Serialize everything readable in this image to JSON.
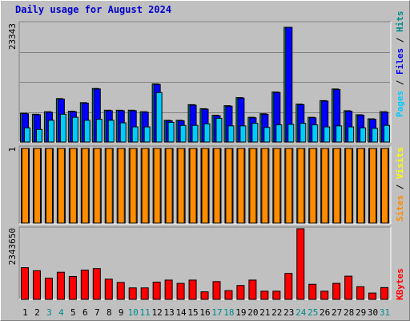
{
  "title": "Daily usage for August 2024",
  "colors": {
    "hits": "#008b8b",
    "files": "#0000ff",
    "pages": "#00ccff",
    "visits": "#ffff00",
    "sites": "#ff8c00",
    "kbytes": "#ff0000",
    "weekend_day": "#008b8b"
  },
  "chart_data": [
    {
      "type": "bar",
      "name": "hits-files-pages",
      "categories": [
        "1",
        "2",
        "3",
        "4",
        "5",
        "6",
        "7",
        "8",
        "9",
        "10",
        "11",
        "12",
        "13",
        "14",
        "15",
        "16",
        "17",
        "18",
        "19",
        "20",
        "21",
        "22",
        "23",
        "24",
        "25",
        "26",
        "27",
        "28",
        "29",
        "30",
        "31"
      ],
      "ymax_label": "23343",
      "ylim": [
        0,
        23343
      ],
      "series": [
        {
          "name": "Hits",
          "values": [
            5700,
            5500,
            6000,
            8600,
            6100,
            7800,
            10600,
            6300,
            6300,
            6300,
            6000,
            11500,
            4300,
            4300,
            7400,
            6600,
            5300,
            7200,
            8800,
            4900,
            5600,
            9900,
            22700,
            7500,
            4900,
            8200,
            10500,
            6200,
            5400,
            4600,
            6000
          ]
        },
        {
          "name": "Files",
          "values": [
            5600,
            5400,
            5900,
            8500,
            6000,
            7700,
            10500,
            6200,
            6200,
            6200,
            5900,
            11400,
            4200,
            4200,
            7300,
            6500,
            5200,
            7100,
            8700,
            4800,
            5500,
            9800,
            22700,
            7400,
            4800,
            8100,
            10400,
            6100,
            5300,
            4500,
            5900
          ]
        },
        {
          "name": "Pages",
          "values": [
            2800,
            2500,
            4300,
            5500,
            4900,
            4300,
            4500,
            4300,
            3800,
            3000,
            3000,
            9800,
            3900,
            3300,
            3300,
            3600,
            4700,
            3200,
            3200,
            3700,
            2900,
            3400,
            3500,
            3700,
            3400,
            3000,
            3200,
            3000,
            2800,
            2700,
            3300
          ]
        }
      ]
    },
    {
      "type": "bar",
      "name": "sites-visits",
      "categories": [
        "1",
        "2",
        "3",
        "4",
        "5",
        "6",
        "7",
        "8",
        "9",
        "10",
        "11",
        "12",
        "13",
        "14",
        "15",
        "16",
        "17",
        "18",
        "19",
        "20",
        "21",
        "22",
        "23",
        "24",
        "25",
        "26",
        "27",
        "28",
        "29",
        "30",
        "31"
      ],
      "ymax_label": "1",
      "ylim": [
        0,
        1
      ],
      "series": [
        {
          "name": "Visits",
          "values": [
            1,
            1,
            1,
            1,
            1,
            1,
            1,
            1,
            1,
            1,
            1,
            1,
            1,
            1,
            1,
            1,
            1,
            1,
            1,
            1,
            1,
            1,
            1,
            1,
            1,
            1,
            1,
            1,
            1,
            1,
            1
          ]
        },
        {
          "name": "Sites",
          "values": [
            1,
            1,
            1,
            1,
            1,
            1,
            1,
            1,
            1,
            1,
            1,
            1,
            1,
            1,
            1,
            1,
            1,
            1,
            1,
            1,
            1,
            1,
            1,
            1,
            1,
            1,
            1,
            1,
            1,
            1,
            1
          ]
        }
      ]
    },
    {
      "type": "bar",
      "name": "kbytes",
      "categories": [
        "1",
        "2",
        "3",
        "4",
        "5",
        "6",
        "7",
        "8",
        "9",
        "10",
        "11",
        "12",
        "13",
        "14",
        "15",
        "16",
        "17",
        "18",
        "19",
        "20",
        "21",
        "22",
        "23",
        "24",
        "25",
        "26",
        "27",
        "28",
        "29",
        "30",
        "31"
      ],
      "ymax_label": "2343650",
      "ylim": [
        0,
        2343650
      ],
      "series": [
        {
          "name": "KBytes",
          "values": [
            1050000,
            950000,
            700000,
            900000,
            760000,
            970000,
            1020000,
            670000,
            560000,
            380000,
            380000,
            570000,
            640000,
            530000,
            640000,
            250000,
            590000,
            290000,
            460000,
            640000,
            270000,
            270000,
            860000,
            2343650,
            500000,
            270000,
            530000,
            770000,
            420000,
            210000,
            390000
          ]
        }
      ]
    }
  ],
  "labels": {
    "upper_right": [
      "Pages",
      " / ",
      "Files",
      " / ",
      "Hits"
    ],
    "middle_right": [
      "Sites",
      " / ",
      "Visits"
    ],
    "lower_right": [
      "KBytes"
    ]
  },
  "weekend_days": [
    "3",
    "4",
    "10",
    "11",
    "17",
    "18",
    "24",
    "25",
    "31"
  ]
}
